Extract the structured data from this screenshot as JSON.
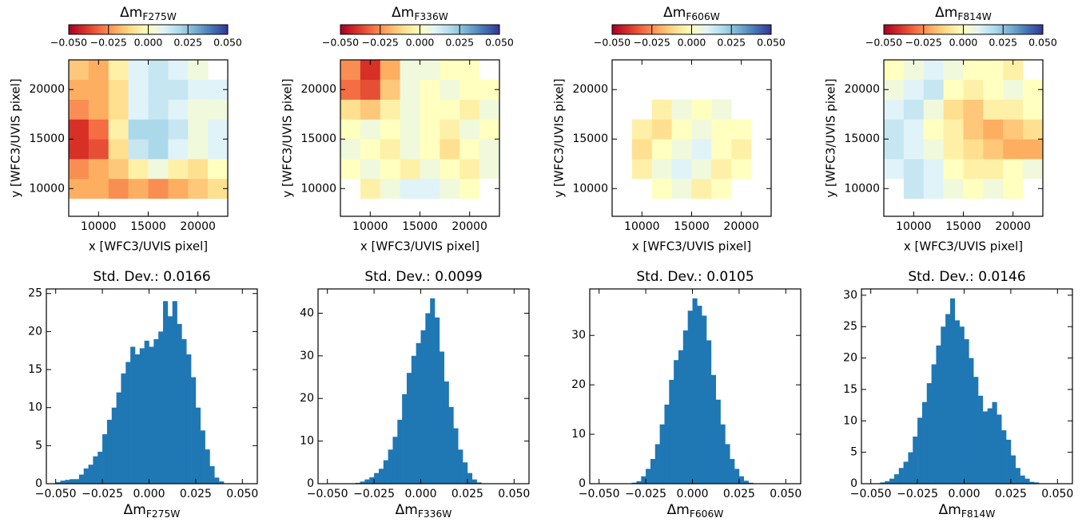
{
  "chart_data": [
    {
      "type": "heatmap",
      "title": [
        "Δm",
        "F275W"
      ],
      "colormap": "RdYlBu",
      "clim": [
        -0.05,
        0.05
      ],
      "cticks": [
        {
          "value": -0.05,
          "label": "−0.050"
        },
        {
          "value": -0.025,
          "label": "−0.025"
        },
        {
          "value": 0,
          "label": "0.000"
        },
        {
          "value": 0.025,
          "label": "0.025"
        },
        {
          "value": 0.05,
          "label": "0.050"
        }
      ],
      "xlabel": "x [WFC3/UVIS pixel]",
      "ylabel": "y [WFC3/UVIS pixel]",
      "xlim": [
        7000,
        23000
      ],
      "ylim": [
        7200,
        23000
      ],
      "xticks": [
        10000,
        15000,
        20000
      ],
      "yticks": [
        10000,
        15000,
        20000
      ],
      "xbins": [
        7000,
        9000,
        11000,
        13000,
        15000,
        17000,
        19000,
        21000,
        23000
      ],
      "ybins": [
        9000,
        11000,
        13000,
        15000,
        17000,
        19000,
        21000,
        23000
      ],
      "z": [
        [
          -0.02,
          -0.02,
          -0.025,
          -0.02,
          -0.025,
          -0.02,
          -0.015,
          -0.01
        ],
        [
          -0.025,
          -0.02,
          -0.015,
          -0.005,
          0.005,
          -0.005,
          -0.01,
          0.0
        ],
        [
          -0.04,
          -0.035,
          -0.01,
          0.015,
          0.02,
          0.01,
          0.005,
          0.01
        ],
        [
          -0.04,
          -0.03,
          -0.005,
          0.02,
          0.02,
          0.015,
          0.005,
          0.01
        ],
        [
          -0.025,
          -0.02,
          -0.01,
          0.01,
          0.015,
          0.01,
          0.005,
          0.005
        ],
        [
          -0.02,
          -0.02,
          -0.01,
          0.01,
          0.015,
          0.015,
          0.01,
          0.01
        ],
        [
          -0.015,
          -0.02,
          -0.005,
          0.01,
          0.015,
          0.01,
          0.005,
          null
        ]
      ]
    },
    {
      "type": "heatmap",
      "title": [
        "Δm",
        "F336W"
      ],
      "colormap": "RdYlBu",
      "clim": [
        -0.05,
        0.05
      ],
      "cticks": [
        {
          "value": -0.05,
          "label": "−0.050"
        },
        {
          "value": -0.025,
          "label": "−0.025"
        },
        {
          "value": 0,
          "label": "0.000"
        },
        {
          "value": 0.025,
          "label": "0.025"
        },
        {
          "value": 0.05,
          "label": "0.050"
        }
      ],
      "xlabel": "x [WFC3/UVIS pixel]",
      "ylabel": "y [WFC3/UVIS pixel]",
      "xlim": [
        7000,
        23000
      ],
      "ylim": [
        7200,
        23000
      ],
      "xticks": [
        10000,
        15000,
        20000
      ],
      "yticks": [
        10000,
        15000,
        20000
      ],
      "xbins": [
        7000,
        9000,
        11000,
        13000,
        15000,
        17000,
        19000,
        21000,
        23000
      ],
      "ybins": [
        9000,
        11000,
        13000,
        15000,
        17000,
        19000,
        21000,
        23000
      ],
      "z": [
        [
          null,
          -0.005,
          0.005,
          0.01,
          0.01,
          0.005,
          0.0,
          null
        ],
        [
          0.0,
          0.005,
          0.0,
          -0.005,
          0.005,
          0.0,
          -0.005,
          0.005
        ],
        [
          0.005,
          0.0,
          -0.005,
          0.005,
          0.0,
          -0.01,
          0.0,
          0.005
        ],
        [
          0.0,
          0.005,
          0.0,
          0.005,
          0.0,
          -0.005,
          0.005,
          0.0
        ],
        [
          -0.01,
          -0.015,
          -0.005,
          0.005,
          0.0,
          0.0,
          -0.005,
          0.005
        ],
        [
          -0.03,
          -0.035,
          -0.015,
          0.005,
          0.0,
          0.005,
          0.0,
          0.0
        ],
        [
          -0.025,
          -0.04,
          -0.02,
          0.005,
          0.005,
          0.0,
          0.0,
          null
        ]
      ]
    },
    {
      "type": "heatmap",
      "title": [
        "Δm",
        "F606W"
      ],
      "colormap": "RdYlBu",
      "clim": [
        -0.05,
        0.05
      ],
      "cticks": [
        {
          "value": -0.05,
          "label": "−0.050"
        },
        {
          "value": -0.025,
          "label": "−0.025"
        },
        {
          "value": 0,
          "label": "0.000"
        },
        {
          "value": 0.025,
          "label": "0.025"
        },
        {
          "value": 0.05,
          "label": "0.050"
        }
      ],
      "xlabel": "x [WFC3/UVIS pixel]",
      "ylabel": "y [WFC3/UVIS pixel]",
      "xlim": [
        7000,
        23000
      ],
      "ylim": [
        7200,
        23000
      ],
      "xticks": [
        10000,
        15000,
        20000
      ],
      "yticks": [
        10000,
        15000,
        20000
      ],
      "xbins": [
        7000,
        9000,
        11000,
        13000,
        15000,
        17000,
        19000,
        21000,
        23000
      ],
      "ybins": [
        9000,
        11000,
        13000,
        15000,
        17000,
        19000,
        21000,
        23000
      ],
      "z": [
        [
          null,
          null,
          0.0,
          0.005,
          -0.005,
          0.0,
          null,
          null
        ],
        [
          null,
          -0.005,
          0.005,
          0.01,
          0.005,
          -0.005,
          0.0,
          null
        ],
        [
          null,
          -0.01,
          0.0,
          0.005,
          0.01,
          0.0,
          -0.005,
          null
        ],
        [
          null,
          -0.005,
          -0.01,
          0.0,
          0.005,
          0.0,
          0.0,
          null
        ],
        [
          null,
          null,
          -0.005,
          0.005,
          0.0,
          0.005,
          null,
          null
        ],
        [
          null,
          null,
          null,
          null,
          null,
          null,
          null,
          null
        ],
        [
          null,
          null,
          null,
          null,
          null,
          null,
          null,
          null
        ]
      ]
    },
    {
      "type": "heatmap",
      "title": [
        "Δm",
        "F814W"
      ],
      "colormap": "RdYlBu",
      "clim": [
        -0.05,
        0.05
      ],
      "cticks": [
        {
          "value": -0.05,
          "label": "−0.050"
        },
        {
          "value": -0.025,
          "label": "−0.025"
        },
        {
          "value": 0,
          "label": "0.000"
        },
        {
          "value": 0.025,
          "label": "0.025"
        },
        {
          "value": 0.05,
          "label": "0.050"
        }
      ],
      "xlabel": "x [WFC3/UVIS pixel]",
      "ylabel": "y [WFC3/UVIS pixel]",
      "xlim": [
        7000,
        23000
      ],
      "ylim": [
        7200,
        23000
      ],
      "xticks": [
        10000,
        15000,
        20000
      ],
      "yticks": [
        10000,
        15000,
        20000
      ],
      "xbins": [
        7000,
        9000,
        11000,
        13000,
        15000,
        17000,
        19000,
        21000,
        23000
      ],
      "ybins": [
        9000,
        11000,
        13000,
        15000,
        17000,
        19000,
        21000,
        23000
      ],
      "z": [
        [
          null,
          0.015,
          0.01,
          0.005,
          0.0,
          0.005,
          0.0,
          null
        ],
        [
          0.01,
          0.015,
          0.01,
          0.0,
          -0.005,
          -0.005,
          0.0,
          0.005
        ],
        [
          0.015,
          0.01,
          0.005,
          -0.005,
          -0.01,
          -0.015,
          -0.02,
          -0.02
        ],
        [
          0.015,
          0.01,
          0.0,
          -0.005,
          -0.015,
          -0.02,
          -0.015,
          -0.01
        ],
        [
          0.01,
          0.015,
          0.005,
          -0.01,
          -0.015,
          -0.005,
          -0.005,
          0.0
        ],
        [
          0.005,
          0.01,
          0.015,
          0.0,
          -0.005,
          0.0,
          0.005,
          0.0
        ],
        [
          0.0,
          0.005,
          0.01,
          0.005,
          0.0,
          0.0,
          -0.005,
          null
        ]
      ]
    },
    {
      "type": "histogram",
      "title": "Std. Dev.: 0.0166",
      "xlabel": [
        "Δm",
        "F275W"
      ],
      "color": "#1f77b4",
      "bins": [
        -0.05,
        -0.0475,
        -0.045,
        -0.0425,
        -0.04,
        -0.0375,
        -0.035,
        -0.0325,
        -0.03,
        -0.0275,
        -0.025,
        -0.0225,
        -0.02,
        -0.0175,
        -0.015,
        -0.0125,
        -0.01,
        -0.0075,
        -0.005,
        -0.0025,
        0,
        0.0025,
        0.005,
        0.0075,
        0.01,
        0.0125,
        0.015,
        0.0175,
        0.02,
        0.0225,
        0.025,
        0.0275,
        0.03,
        0.0325,
        0.035,
        0.0375,
        0.04,
        0.0425,
        0.045,
        0.0475,
        0.05
      ],
      "values": [
        0.2,
        0.4,
        0.5,
        0.6,
        0.6,
        1.2,
        2,
        2.5,
        3.6,
        4.2,
        6.5,
        8.4,
        10,
        12,
        14.5,
        16,
        18,
        17,
        17.8,
        18.8,
        18,
        19,
        20,
        24,
        22,
        24,
        21,
        19,
        17,
        14,
        10,
        7,
        4.5,
        2.3,
        0.8,
        0.3,
        0,
        0,
        0,
        0
      ],
      "xlim": [
        -0.055,
        0.058
      ],
      "ylim": [
        0,
        25.6
      ],
      "xticks": [
        {
          "value": -0.05,
          "label": "−0.050"
        },
        {
          "value": -0.025,
          "label": "−0.025"
        },
        {
          "value": 0,
          "label": "0.000"
        },
        {
          "value": 0.025,
          "label": "0.025"
        },
        {
          "value": 0.05,
          "label": "0.050"
        }
      ],
      "yticks": [
        0,
        5,
        10,
        15,
        20,
        25
      ]
    },
    {
      "type": "histogram",
      "title": "Std. Dev.: 0.0099",
      "xlabel": [
        "Δm",
        "F336W"
      ],
      "color": "#1f77b4",
      "bins": [
        -0.05,
        -0.0475,
        -0.045,
        -0.0425,
        -0.04,
        -0.0375,
        -0.035,
        -0.0325,
        -0.03,
        -0.0275,
        -0.025,
        -0.0225,
        -0.02,
        -0.0175,
        -0.015,
        -0.0125,
        -0.01,
        -0.0075,
        -0.005,
        -0.0025,
        0,
        0.0025,
        0.005,
        0.0075,
        0.01,
        0.0125,
        0.015,
        0.0175,
        0.02,
        0.0225,
        0.025,
        0.0275,
        0.03,
        0.0325,
        0.035,
        0.0375,
        0.04,
        0.0425,
        0.045,
        0.0475,
        0.05
      ],
      "values": [
        0,
        0,
        0,
        0,
        0,
        0,
        0.2,
        0.5,
        1,
        1.5,
        2.5,
        3.5,
        5.5,
        8,
        11,
        15,
        21,
        26,
        30,
        33,
        36,
        40,
        43.5,
        39,
        31,
        24,
        18,
        13,
        8,
        5,
        2.5,
        1,
        0.3,
        0,
        0,
        0,
        0,
        0,
        0,
        0
      ],
      "xlim": [
        -0.055,
        0.058
      ],
      "ylim": [
        0,
        45.7
      ],
      "xticks": [
        {
          "value": -0.05,
          "label": "−0.050"
        },
        {
          "value": -0.025,
          "label": "−0.025"
        },
        {
          "value": 0,
          "label": "0.000"
        },
        {
          "value": 0.025,
          "label": "0.025"
        },
        {
          "value": 0.05,
          "label": "0.050"
        }
      ],
      "yticks": [
        0,
        10,
        20,
        30,
        40
      ]
    },
    {
      "type": "histogram",
      "title": "Std. Dev.: 0.0105",
      "xlabel": [
        "Δm",
        "F606W"
      ],
      "color": "#1f77b4",
      "bins": [
        -0.05,
        -0.0475,
        -0.045,
        -0.0425,
        -0.04,
        -0.0375,
        -0.035,
        -0.0325,
        -0.03,
        -0.0275,
        -0.025,
        -0.0225,
        -0.02,
        -0.0175,
        -0.015,
        -0.0125,
        -0.01,
        -0.0075,
        -0.005,
        -0.0025,
        0,
        0.0025,
        0.005,
        0.0075,
        0.01,
        0.0125,
        0.015,
        0.0175,
        0.02,
        0.0225,
        0.025,
        0.0275,
        0.03,
        0.0325,
        0.035,
        0.0375,
        0.04,
        0.0425,
        0.045,
        0.0475,
        0.05
      ],
      "values": [
        0,
        0,
        0,
        0,
        0,
        0,
        0,
        0.2,
        0.5,
        1.5,
        3,
        5,
        8,
        12,
        16,
        21,
        25,
        27,
        31,
        35,
        37.5,
        36,
        34,
        29,
        22,
        17,
        12,
        8,
        5,
        3,
        1.5,
        0.6,
        0.2,
        0,
        0,
        0,
        0,
        0,
        0,
        0
      ],
      "xlim": [
        -0.055,
        0.058
      ],
      "ylim": [
        0,
        39.4
      ],
      "xticks": [
        {
          "value": -0.05,
          "label": "−0.050"
        },
        {
          "value": -0.025,
          "label": "−0.025"
        },
        {
          "value": 0,
          "label": "0.000"
        },
        {
          "value": 0.025,
          "label": "0.025"
        },
        {
          "value": 0.05,
          "label": "0.050"
        }
      ],
      "yticks": [
        0,
        10,
        20,
        30
      ]
    },
    {
      "type": "histogram",
      "title": "Std. Dev.: 0.0146",
      "xlabel": [
        "Δm",
        "F814W"
      ],
      "color": "#1f77b4",
      "bins": [
        -0.05,
        -0.0475,
        -0.045,
        -0.0425,
        -0.04,
        -0.0375,
        -0.035,
        -0.0325,
        -0.03,
        -0.0275,
        -0.025,
        -0.0225,
        -0.02,
        -0.0175,
        -0.015,
        -0.0125,
        -0.01,
        -0.0075,
        -0.005,
        -0.0025,
        0,
        0.0025,
        0.005,
        0.0075,
        0.01,
        0.0125,
        0.015,
        0.0175,
        0.02,
        0.0225,
        0.025,
        0.0275,
        0.03,
        0.0325,
        0.035,
        0.0375,
        0.04,
        0.0425,
        0.045,
        0.0475,
        0.05
      ],
      "values": [
        0,
        0,
        0.2,
        0.4,
        0.8,
        1.5,
        2.5,
        3.5,
        5,
        7.5,
        10.5,
        13,
        16,
        19,
        22,
        25,
        27,
        29.5,
        26,
        25,
        23,
        20,
        17,
        14,
        11.5,
        12,
        13,
        11,
        8.5,
        7,
        4.5,
        2.5,
        1.3,
        0.8,
        0.3,
        0.2,
        0,
        0,
        0,
        0
      ],
      "xlim": [
        -0.055,
        0.058
      ],
      "ylim": [
        0,
        31
      ],
      "xticks": [
        {
          "value": -0.05,
          "label": "−0.050"
        },
        {
          "value": -0.025,
          "label": "−0.025"
        },
        {
          "value": 0,
          "label": "0.000"
        },
        {
          "value": 0.025,
          "label": "0.025"
        },
        {
          "value": 0.05,
          "label": "0.050"
        }
      ],
      "yticks": [
        0,
        5,
        10,
        15,
        20,
        25,
        30
      ]
    }
  ]
}
